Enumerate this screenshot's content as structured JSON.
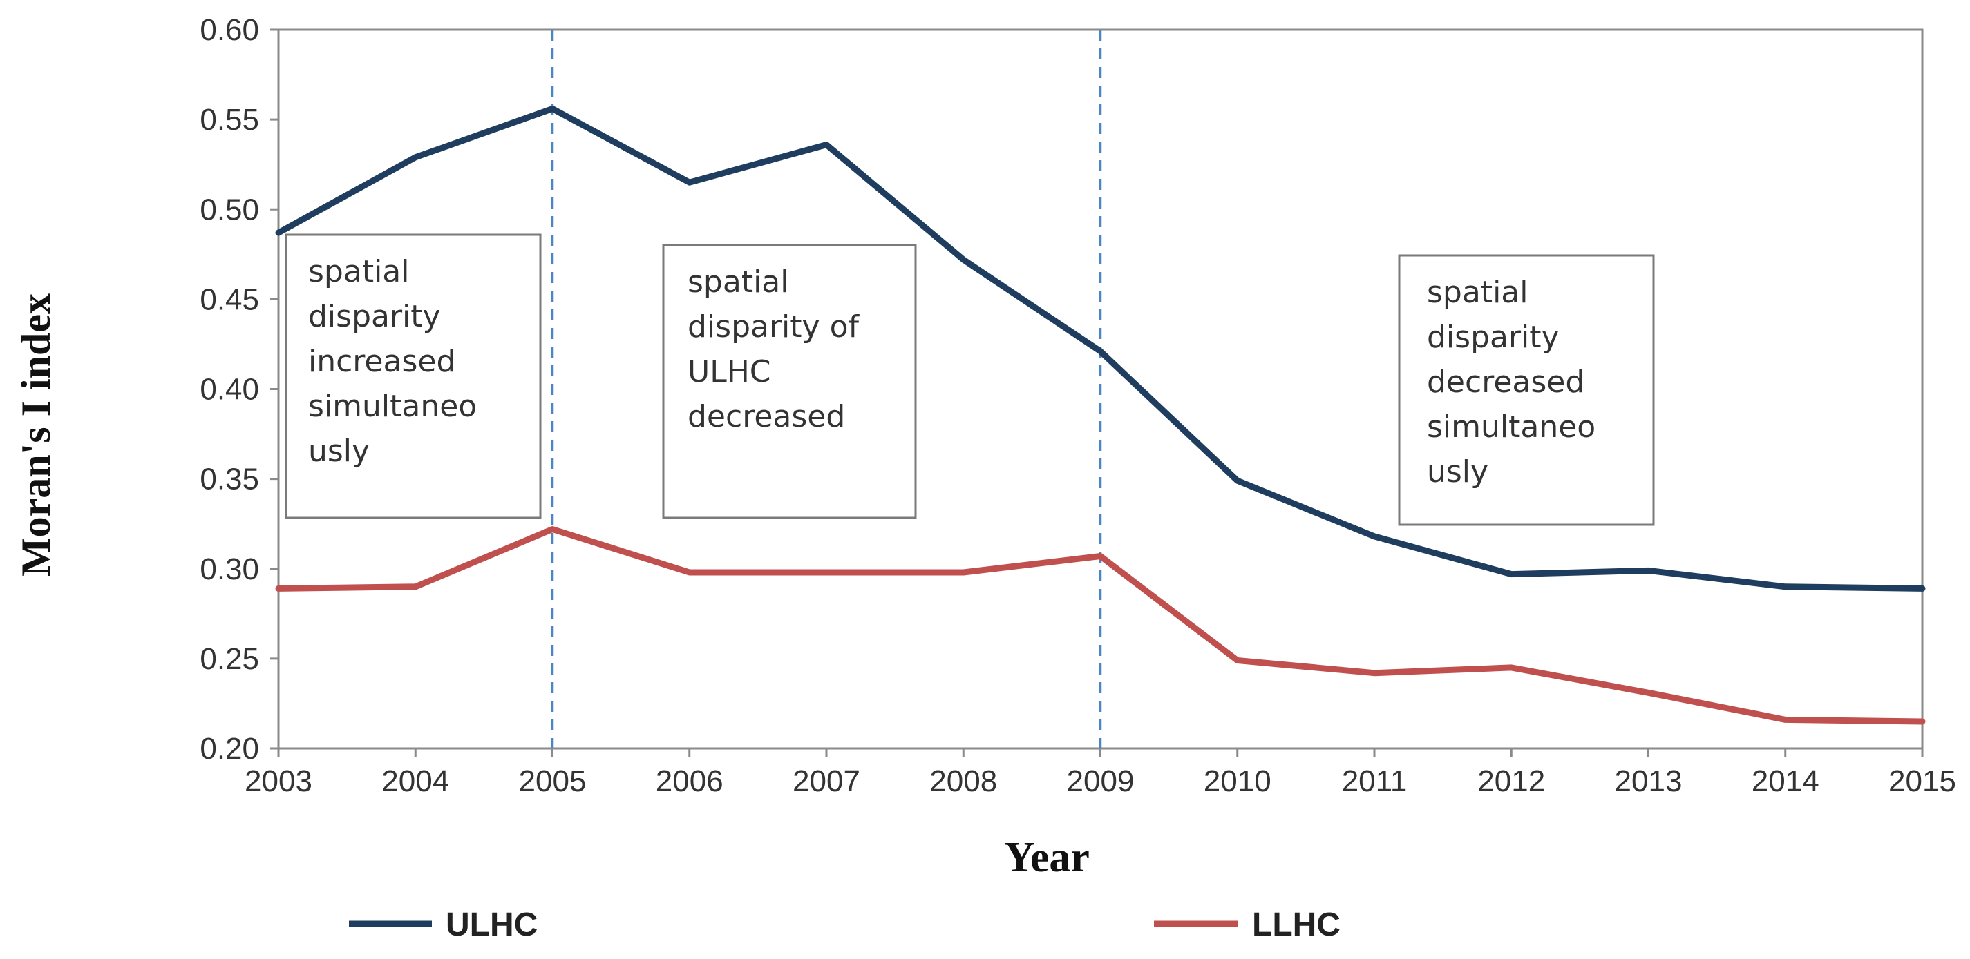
{
  "chart_data": {
    "type": "line",
    "title": "",
    "xlabel": "Year",
    "ylabel": "Moran's I index",
    "x": [
      "2003",
      "2004",
      "2005",
      "2006",
      "2007",
      "2008",
      "2009",
      "2010",
      "2011",
      "2012",
      "2013",
      "2014",
      "2015"
    ],
    "ylim": [
      0.2,
      0.6
    ],
    "y_ticks": [
      "0.20",
      "0.25",
      "0.30",
      "0.35",
      "0.40",
      "0.45",
      "0.50",
      "0.55",
      "0.60"
    ],
    "grid": false,
    "legend_position": "bottom",
    "series": [
      {
        "name": "ULHC",
        "color": "#1f3d5f",
        "values": [
          0.487,
          0.529,
          0.556,
          0.515,
          0.536,
          0.472,
          0.421,
          0.349,
          0.318,
          0.297,
          0.299,
          0.29,
          0.289
        ]
      },
      {
        "name": "LLHC",
        "color": "#c0504d",
        "values": [
          0.289,
          0.29,
          0.322,
          0.298,
          0.298,
          0.298,
          0.307,
          0.249,
          0.242,
          0.245,
          0.231,
          0.216,
          0.215
        ]
      }
    ],
    "reference_lines": [
      {
        "x": "2005",
        "color": "#4a86c5"
      },
      {
        "x": "2009",
        "color": "#4a86c5"
      }
    ],
    "annotations": [
      {
        "lines": [
          "spatial",
          "disparity",
          "increased",
          "simultaneo",
          "usly"
        ]
      },
      {
        "lines": [
          "spatial",
          "disparity of",
          "ULHC",
          "decreased"
        ]
      },
      {
        "lines": [
          "spatial",
          "disparity",
          "decreased",
          "simultaneo",
          "usly"
        ]
      }
    ]
  }
}
